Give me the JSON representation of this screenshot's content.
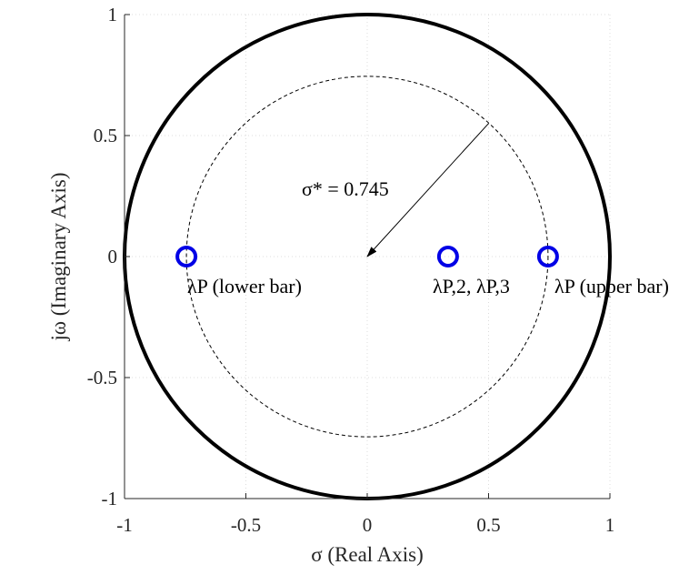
{
  "chart_data": {
    "type": "scatter",
    "xlabel": "σ (Real Axis)",
    "ylabel": "jω (Imaginary Axis)",
    "xlim": [
      -1,
      1
    ],
    "ylim": [
      -1,
      1
    ],
    "xticks": [
      -1,
      -0.5,
      0,
      0.5,
      1
    ],
    "yticks": [
      -1,
      -0.5,
      0,
      0.5,
      1
    ],
    "xtick_labels": [
      "-1",
      "-0.5",
      "0",
      "0.5",
      "1"
    ],
    "ytick_labels": [
      "-1",
      "-0.5",
      "0",
      "0.5",
      "1"
    ],
    "grid": true,
    "unit_circle_radius": 1,
    "dashed_circle_radius": 0.745,
    "radius_annotation": {
      "text": "σ* = 0.745",
      "arrow_from": [
        0.5,
        0.55
      ],
      "arrow_to": [
        0,
        0
      ]
    },
    "points": [
      {
        "x": -0.745,
        "y": 0,
        "label": "λP (lower bar)"
      },
      {
        "x": 0.333,
        "y": 0,
        "label": "λP,2, λP,3"
      },
      {
        "x": 0.745,
        "y": 0,
        "label": "λP (upper bar)"
      }
    ],
    "colors": {
      "points": "#0000e6",
      "unit_circle": "#000000",
      "dashed_circle": "#000000",
      "grid": "#dcdcdc"
    }
  }
}
